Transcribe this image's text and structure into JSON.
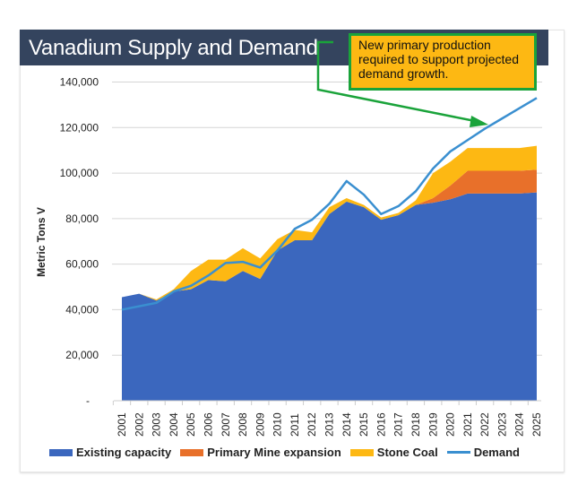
{
  "chart_data": {
    "type": "area",
    "title": "Vanadium Supply and Demand",
    "ylabel": "Metric Tons V",
    "xlabel": "",
    "ylim": [
      0,
      140000
    ],
    "yticks": [
      0,
      20000,
      40000,
      60000,
      80000,
      100000,
      120000,
      140000
    ],
    "ytick_labels": [
      "-",
      "20,000",
      "40,000",
      "60,000",
      "80,000",
      "100,000",
      "120,000",
      "140,000"
    ],
    "grid": true,
    "legend_position": "bottom",
    "categories": [
      "2001",
      "2002",
      "2003",
      "2004",
      "2005",
      "2006",
      "2007",
      "2008",
      "2009",
      "2010",
      "2011",
      "2012",
      "2013",
      "2014",
      "2015",
      "2016",
      "2017",
      "2018",
      "2019",
      "2020",
      "2021",
      "2022",
      "2023",
      "2024",
      "2025"
    ],
    "stacked_series": [
      {
        "name": "Existing capacity",
        "color": "#3b67be",
        "values": [
          45500,
          47000,
          44000,
          48000,
          49000,
          53000,
          52500,
          57000,
          53500,
          66000,
          70500,
          70500,
          82000,
          87500,
          85000,
          79500,
          81500,
          86000,
          87000,
          88500,
          91000,
          91000,
          91000,
          91000,
          91500
        ]
      },
      {
        "name": "Primary Mine expansion",
        "color": "#e8702a",
        "values": [
          0,
          0,
          0,
          0,
          0,
          0,
          0,
          0,
          0,
          0,
          0,
          0,
          0,
          0,
          0,
          0,
          0,
          0,
          2000,
          6000,
          10000,
          10000,
          10000,
          10000,
          10000
        ]
      },
      {
        "name": "Stone Coal",
        "color": "#fdb813",
        "values": [
          0,
          0,
          500,
          1000,
          8000,
          9000,
          9500,
          10000,
          9000,
          5000,
          4500,
          3500,
          3000,
          1500,
          1000,
          1000,
          1000,
          2000,
          11000,
          10500,
          10000,
          10000,
          10000,
          10000,
          10500
        ]
      }
    ],
    "line_series": [
      {
        "name": "Demand",
        "color": "#3a8fd0",
        "values": [
          40000,
          41500,
          43000,
          48000,
          50500,
          55000,
          60500,
          61000,
          58500,
          66000,
          75500,
          79500,
          86500,
          96500,
          90500,
          82000,
          85500,
          92000,
          102000,
          109500,
          114500,
          119500,
          124000,
          128500,
          133000
        ]
      }
    ],
    "annotation": {
      "text": "New primary production required to support projected demand growth.",
      "background": "#fdb813",
      "border": "#1aa33a"
    }
  }
}
